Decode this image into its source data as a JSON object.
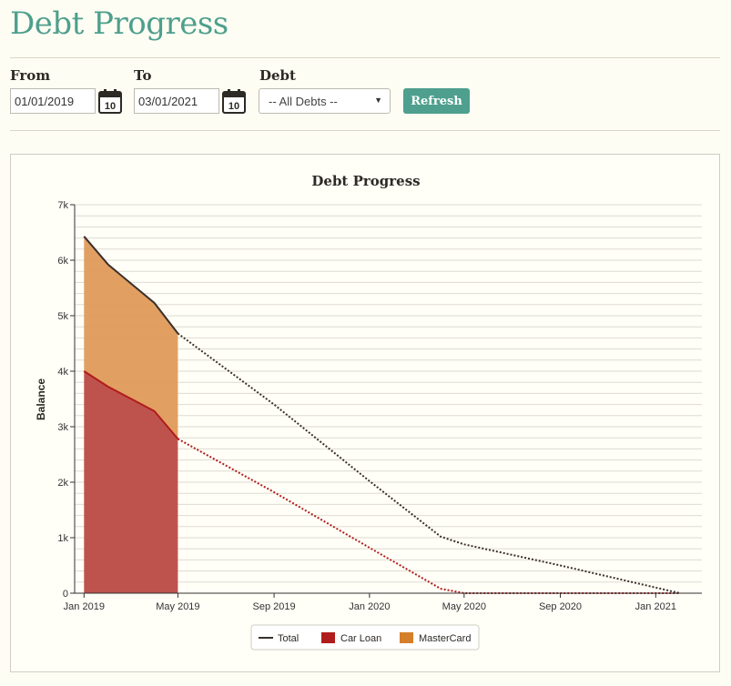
{
  "page": {
    "title": "Debt Progress"
  },
  "filters": {
    "from_label": "From",
    "from_value": "01/01/2019",
    "to_label": "To",
    "to_value": "03/01/2021",
    "debt_label": "Debt",
    "debt_selected": "-- All Debts --",
    "calendar_icon_text": "10",
    "refresh_label": "Refresh"
  },
  "icons": {
    "calendar": "calendar-icon",
    "dropdown": "chevron-down-icon"
  },
  "colors": {
    "accent": "#4e9f8d",
    "total": "#3b2f2a",
    "car_loan": "#b01c1c",
    "car_loan_fill": "#bb4a44",
    "mastercard": "#d57f2a",
    "mastercard_fill": "#df9a59"
  },
  "chart_data": {
    "type": "area",
    "title": "Debt Progress",
    "xlabel": "",
    "ylabel": "Balance",
    "x_range": [
      "2018-12-20",
      "2021-03-01"
    ],
    "ylim": [
      0,
      7000
    ],
    "y_ticks": [
      0,
      1000,
      2000,
      3000,
      4000,
      5000,
      6000,
      7000
    ],
    "y_tick_labels": [
      "0",
      "1k",
      "2k",
      "3k",
      "4k",
      "5k",
      "6k",
      "7k"
    ],
    "x_ticks": [
      "2019-01-01",
      "2019-05-01",
      "2019-09-01",
      "2020-01-01",
      "2020-05-01",
      "2020-09-01",
      "2021-01-01"
    ],
    "x_tick_labels": [
      "Jan 2019",
      "May 2019",
      "Sep 2019",
      "Jan 2020",
      "May 2020",
      "Sep 2020",
      "Jan 2021"
    ],
    "grid": true,
    "legend_position": "bottom-center",
    "series": [
      {
        "name": "Total",
        "style": "line",
        "actual": [
          [
            "2019-01-01",
            6430
          ],
          [
            "2019-02-01",
            5920
          ],
          [
            "2019-04-01",
            5230
          ],
          [
            "2019-05-01",
            4680
          ]
        ],
        "projected": [
          [
            "2019-05-01",
            4680
          ],
          [
            "2019-09-01",
            3400
          ],
          [
            "2020-01-01",
            2020
          ],
          [
            "2020-04-01",
            1020
          ],
          [
            "2020-05-01",
            880
          ],
          [
            "2020-09-01",
            500
          ],
          [
            "2021-02-01",
            0
          ]
        ]
      },
      {
        "name": "Car Loan",
        "style": "area",
        "actual": [
          [
            "2019-01-01",
            4000
          ],
          [
            "2019-02-01",
            3720
          ],
          [
            "2019-04-01",
            3280
          ],
          [
            "2019-05-01",
            2780
          ]
        ],
        "projected": [
          [
            "2019-05-01",
            2780
          ],
          [
            "2019-09-01",
            1820
          ],
          [
            "2020-01-01",
            820
          ],
          [
            "2020-04-01",
            80
          ],
          [
            "2020-05-01",
            0
          ],
          [
            "2021-02-01",
            0
          ]
        ]
      },
      {
        "name": "MasterCard",
        "style": "area",
        "actual": [
          [
            "2019-01-01",
            2430
          ],
          [
            "2019-02-01",
            2200
          ],
          [
            "2019-04-01",
            1950
          ],
          [
            "2019-05-01",
            1900
          ]
        ]
      }
    ]
  }
}
